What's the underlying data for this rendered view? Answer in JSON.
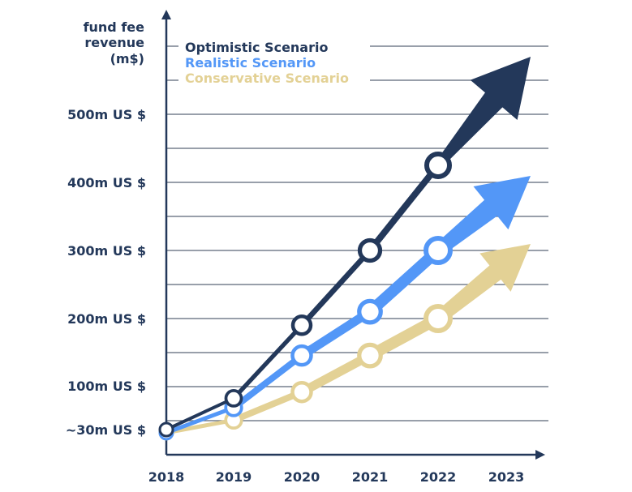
{
  "chart_data": {
    "type": "line",
    "ylabel_lines": [
      "fund fee",
      "revenue",
      "(m$)"
    ],
    "categories": [
      "2018",
      "2019",
      "2020",
      "2021",
      "2022",
      "2023"
    ],
    "y_ticks": [
      {
        "label": "~30m US $",
        "value": 30
      },
      {
        "label": "100m US $",
        "value": 100
      },
      {
        "label": "200m US $",
        "value": 200
      },
      {
        "label": "300m US $",
        "value": 300
      },
      {
        "label": "400m US $",
        "value": 400
      },
      {
        "label": "500m US $",
        "value": 500
      }
    ],
    "ylim": [
      0,
      600
    ],
    "grid": true,
    "legend_position": "top-left",
    "series": [
      {
        "name": "Optimistic Scenario",
        "color": "#23385a",
        "values": [
          30,
          80,
          190,
          300,
          425,
          575
        ]
      },
      {
        "name": "Realistic Scenario",
        "color": "#5397f7",
        "values": [
          25,
          65,
          145,
          210,
          300,
          400
        ]
      },
      {
        "name": "Conservative Scenario",
        "color": "#e3d195",
        "values": [
          25,
          45,
          90,
          145,
          200,
          300
        ]
      }
    ],
    "annotation": "last segment drawn as a thick arrow toward 2023"
  }
}
